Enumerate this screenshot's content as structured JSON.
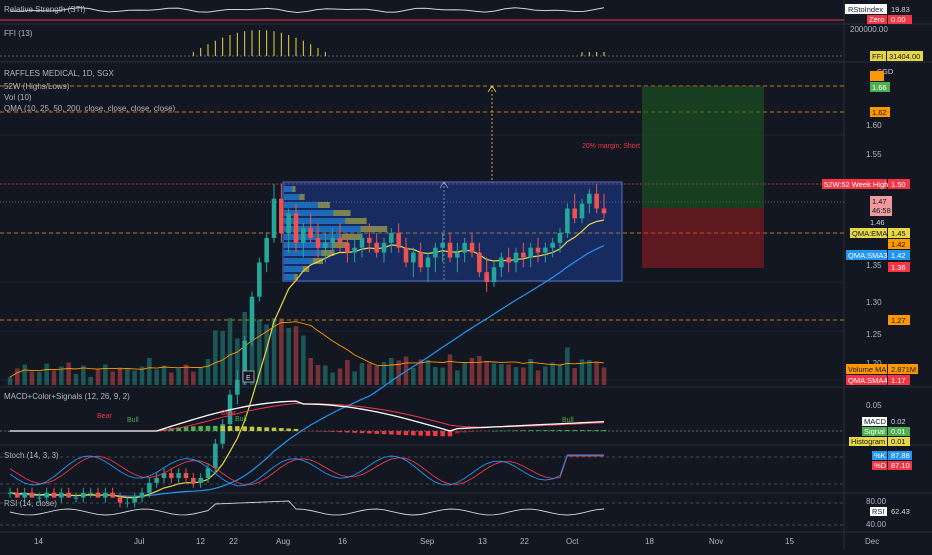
{
  "colors": {
    "bg": "#131722",
    "grid": "#1e222d",
    "text": "#b2b5be",
    "up": "#26a69a",
    "down": "#ef5350",
    "qma_ema": "#e7d745",
    "qma_sma3": "#2196f3",
    "red_line": "#f23645",
    "orange": "#ff9800",
    "white": "#ffffff",
    "macd_signal": "#f23645"
  },
  "panes": {
    "rsi_strength": {
      "title": "Relative Strength (STI)",
      "tag_name": "RStoIndex",
      "tag_value": "19.83",
      "zero_name": "Zero",
      "zero_value": "0.00"
    },
    "ffi": {
      "title": "FFI (13)",
      "scale_value": "200000.00",
      "tag_name": "FFI",
      "tag_value": "31404.00"
    },
    "price": {
      "title": "RAFFLES MEDICAL, 1D, SGX",
      "legend_52w": "52W (Highs/Lows)",
      "legend_vol": "Vol (10)",
      "legend_qma": "QMA (10, 25, 50, 200, close, close, close, close)",
      "currency": "SGD",
      "annotation": "20% margin; Short",
      "marker_e": "E",
      "tags": {
        "t166": "1.66",
        "t162": "1.62",
        "t150_name": "52W:52 Week High",
        "t150": "1.50",
        "t147": "1.47",
        "countdown": "46:58",
        "t146": "1.46",
        "qma_ema_name": "QMA:EMA",
        "t145": "1.45",
        "t142a": "1.42",
        "qma_sma3_name": "QMA:SMA3",
        "t142b": "1.42",
        "t136": "1.36",
        "t127": "1.27",
        "vol_ma_name": "Volume MA",
        "vol_ma": "2.871M",
        "qma_sma4_name": "QMA:SMA4",
        "t117": "1.17"
      },
      "axis_ticks": [
        "1.60",
        "1.55",
        "1.35",
        "1.30",
        "1.25",
        "1.20"
      ]
    },
    "macd": {
      "title": "MACD+Color+Signals (12, 26, 9, 2)",
      "axis_tick": "0.05",
      "macd_name": "MACD",
      "macd_value": "0.02",
      "signal_name": "Signal",
      "signal_value": "0.01",
      "hist_name": "Histogram",
      "hist_value": "0.01",
      "signals": [
        "Bear",
        "Bull",
        "Bear",
        "Bull",
        "Bull"
      ]
    },
    "stoch": {
      "title": "Stoch (14, 3, 3)",
      "k_name": "%K",
      "k_value": "87.88",
      "d_name": "%D",
      "d_value": "87.10"
    },
    "rsi": {
      "title": "RSI (14, close)",
      "axis_top": "80.00",
      "axis_bottom": "40.00",
      "tag_name": "RSI",
      "tag_value": "62.43"
    }
  },
  "time_axis": [
    "14",
    "Jul",
    "12",
    "22",
    "Aug",
    "16",
    "Sep",
    "13",
    "22",
    "Oct",
    "18",
    "Nov",
    "15",
    "Dec"
  ],
  "chart_data": {
    "type": "candlestick",
    "title": "RAFFLES MEDICAL, 1D, SGX",
    "y_axis": {
      "ticks": [
        1.2,
        1.25,
        1.3,
        1.35,
        1.4,
        1.45,
        1.5,
        1.55,
        1.6,
        1.65
      ]
    },
    "ohlc": [
      [
        1.185,
        1.19,
        1.18,
        1.185
      ],
      [
        1.185,
        1.19,
        1.18,
        1.18
      ],
      [
        1.18,
        1.19,
        1.175,
        1.185
      ],
      [
        1.185,
        1.19,
        1.18,
        1.18
      ],
      [
        1.18,
        1.185,
        1.175,
        1.18
      ],
      [
        1.18,
        1.19,
        1.175,
        1.185
      ],
      [
        1.185,
        1.19,
        1.18,
        1.18
      ],
      [
        1.18,
        1.19,
        1.175,
        1.185
      ],
      [
        1.185,
        1.19,
        1.18,
        1.18
      ],
      [
        1.18,
        1.185,
        1.175,
        1.18
      ],
      [
        1.18,
        1.19,
        1.175,
        1.185
      ],
      [
        1.185,
        1.19,
        1.18,
        1.185
      ],
      [
        1.185,
        1.19,
        1.18,
        1.18
      ],
      [
        1.18,
        1.19,
        1.175,
        1.185
      ],
      [
        1.185,
        1.19,
        1.18,
        1.18
      ],
      [
        1.18,
        1.185,
        1.17,
        1.175
      ],
      [
        1.175,
        1.18,
        1.17,
        1.175
      ],
      [
        1.175,
        1.185,
        1.17,
        1.18
      ],
      [
        1.18,
        1.19,
        1.175,
        1.185
      ],
      [
        1.185,
        1.2,
        1.18,
        1.195
      ],
      [
        1.195,
        1.205,
        1.19,
        1.2
      ],
      [
        1.2,
        1.21,
        1.195,
        1.205
      ],
      [
        1.205,
        1.21,
        1.195,
        1.2
      ],
      [
        1.2,
        1.21,
        1.195,
        1.205
      ],
      [
        1.205,
        1.21,
        1.195,
        1.2
      ],
      [
        1.2,
        1.205,
        1.19,
        1.195
      ],
      [
        1.195,
        1.205,
        1.19,
        1.2
      ],
      [
        1.2,
        1.215,
        1.195,
        1.21
      ],
      [
        1.21,
        1.24,
        1.205,
        1.235
      ],
      [
        1.235,
        1.26,
        1.23,
        1.255
      ],
      [
        1.255,
        1.29,
        1.25,
        1.285
      ],
      [
        1.285,
        1.31,
        1.275,
        1.3
      ],
      [
        1.3,
        1.345,
        1.295,
        1.34
      ],
      [
        1.34,
        1.39,
        1.335,
        1.385
      ],
      [
        1.385,
        1.425,
        1.38,
        1.42
      ],
      [
        1.42,
        1.45,
        1.41,
        1.445
      ],
      [
        1.445,
        1.5,
        1.44,
        1.485
      ],
      [
        1.485,
        1.5,
        1.44,
        1.45
      ],
      [
        1.45,
        1.475,
        1.43,
        1.47
      ],
      [
        1.47,
        1.48,
        1.43,
        1.44
      ],
      [
        1.44,
        1.46,
        1.425,
        1.455
      ],
      [
        1.455,
        1.47,
        1.44,
        1.445
      ],
      [
        1.445,
        1.46,
        1.425,
        1.435
      ],
      [
        1.435,
        1.45,
        1.42,
        1.44
      ],
      [
        1.44,
        1.455,
        1.43,
        1.445
      ],
      [
        1.445,
        1.46,
        1.43,
        1.44
      ],
      [
        1.44,
        1.45,
        1.42,
        1.43
      ],
      [
        1.43,
        1.445,
        1.42,
        1.435
      ],
      [
        1.435,
        1.45,
        1.425,
        1.445
      ],
      [
        1.445,
        1.46,
        1.43,
        1.44
      ],
      [
        1.44,
        1.45,
        1.425,
        1.43
      ],
      [
        1.43,
        1.445,
        1.42,
        1.44
      ],
      [
        1.44,
        1.455,
        1.43,
        1.45
      ],
      [
        1.45,
        1.46,
        1.43,
        1.435
      ],
      [
        1.435,
        1.445,
        1.415,
        1.42
      ],
      [
        1.42,
        1.435,
        1.405,
        1.43
      ],
      [
        1.43,
        1.44,
        1.41,
        1.415
      ],
      [
        1.415,
        1.43,
        1.4,
        1.425
      ],
      [
        1.425,
        1.44,
        1.41,
        1.435
      ],
      [
        1.435,
        1.45,
        1.42,
        1.44
      ],
      [
        1.44,
        1.45,
        1.42,
        1.425
      ],
      [
        1.425,
        1.44,
        1.41,
        1.43
      ],
      [
        1.43,
        1.445,
        1.42,
        1.44
      ],
      [
        1.44,
        1.45,
        1.425,
        1.43
      ],
      [
        1.43,
        1.44,
        1.405,
        1.41
      ],
      [
        1.41,
        1.425,
        1.39,
        1.4
      ],
      [
        1.4,
        1.42,
        1.395,
        1.415
      ],
      [
        1.415,
        1.43,
        1.405,
        1.425
      ],
      [
        1.425,
        1.435,
        1.41,
        1.42
      ],
      [
        1.42,
        1.435,
        1.41,
        1.43
      ],
      [
        1.43,
        1.44,
        1.415,
        1.425
      ],
      [
        1.425,
        1.44,
        1.415,
        1.435
      ],
      [
        1.435,
        1.445,
        1.42,
        1.43
      ],
      [
        1.43,
        1.44,
        1.42,
        1.435
      ],
      [
        1.435,
        1.445,
        1.425,
        1.44
      ],
      [
        1.44,
        1.455,
        1.43,
        1.45
      ],
      [
        1.45,
        1.48,
        1.445,
        1.475
      ],
      [
        1.475,
        1.49,
        1.46,
        1.465
      ],
      [
        1.465,
        1.485,
        1.46,
        1.48
      ],
      [
        1.48,
        1.495,
        1.47,
        1.49
      ],
      [
        1.49,
        1.5,
        1.47,
        1.475
      ],
      [
        1.475,
        1.49,
        1.465,
        1.47
      ]
    ],
    "series": [
      {
        "name": "QMA:EMA",
        "color": "#e7d745"
      },
      {
        "name": "QMA:SMA3",
        "color": "#2196f3"
      }
    ]
  }
}
